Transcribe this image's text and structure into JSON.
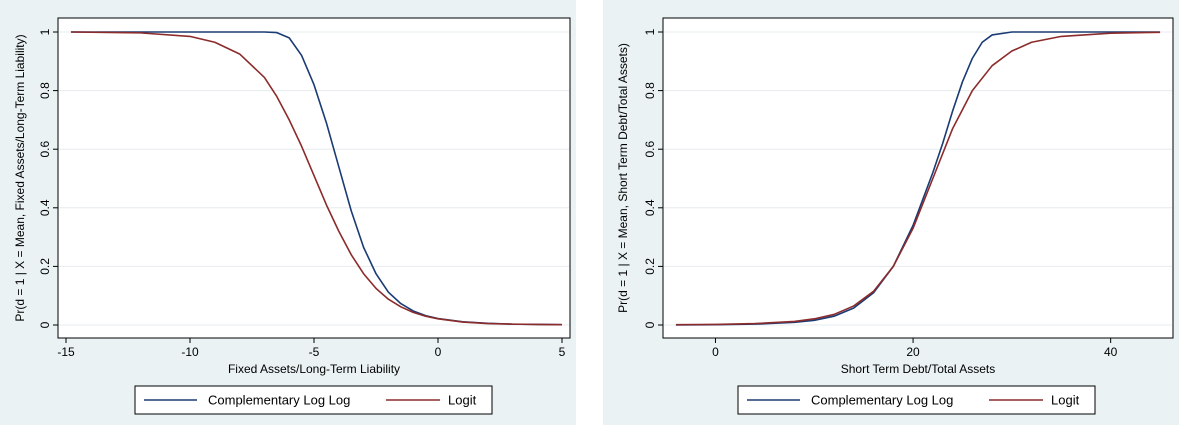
{
  "chart_data": [
    {
      "type": "line",
      "xlabel": "Fixed Assets/Long-Term Liability",
      "ylabel": "Pr(d = 1 | X = Mean, Fixed Assets/Long-Term Liability)",
      "xlim": [
        -15,
        5
      ],
      "ylim": [
        0,
        1
      ],
      "xticks": [
        -15,
        -10,
        -5,
        0,
        5
      ],
      "yticks": [
        0,
        0.2,
        0.4,
        0.6,
        0.8,
        1
      ],
      "ytick_labels": [
        "0",
        "0.2",
        "0.4",
        "0.6",
        "0.8",
        "1"
      ],
      "grid": "horizontal",
      "legend_position": "bottom",
      "series": [
        {
          "name": "Complementary Log Log",
          "color": "#1a3b73",
          "x": [
            -14.8,
            -12,
            -10,
            -8,
            -7,
            -6.5,
            -6,
            -5.5,
            -5,
            -4.5,
            -4,
            -3.5,
            -3,
            -2.5,
            -2,
            -1.5,
            -1,
            -0.5,
            0,
            1,
            2,
            3,
            4,
            5
          ],
          "y": [
            1,
            1,
            1,
            1,
            1,
            0.998,
            0.98,
            0.92,
            0.82,
            0.69,
            0.54,
            0.39,
            0.265,
            0.175,
            0.112,
            0.073,
            0.048,
            0.032,
            0.022,
            0.011,
            0.006,
            0.003,
            0.002,
            0.001
          ]
        },
        {
          "name": "Logit",
          "color": "#8c2b2b",
          "x": [
            -14.8,
            -12,
            -10,
            -9,
            -8,
            -7,
            -6.5,
            -6,
            -5.5,
            -5,
            -4.5,
            -4,
            -3.5,
            -3,
            -2.5,
            -2,
            -1.5,
            -1,
            -0.5,
            0,
            1,
            2,
            3,
            4,
            5
          ],
          "y": [
            1,
            0.997,
            0.985,
            0.965,
            0.925,
            0.845,
            0.78,
            0.7,
            0.61,
            0.51,
            0.41,
            0.32,
            0.24,
            0.175,
            0.125,
            0.088,
            0.062,
            0.043,
            0.03,
            0.021,
            0.01,
            0.005,
            0.003,
            0.002,
            0.001
          ]
        }
      ]
    },
    {
      "type": "line",
      "xlabel": "Short Term Debt/Total Assets",
      "ylabel": "Pr(d = 1 | X = Mean, Short Term Debt/Total Assets)",
      "xlim": [
        -4.5,
        45.5
      ],
      "ylim": [
        0,
        1
      ],
      "xticks": [
        0,
        20,
        40
      ],
      "yticks": [
        0,
        0.2,
        0.4,
        0.6,
        0.8,
        1
      ],
      "ytick_labels": [
        "0",
        "0.2",
        "0.4",
        "0.6",
        "0.8",
        "1"
      ],
      "grid": "horizontal",
      "legend_position": "bottom",
      "series": [
        {
          "name": "Complementary Log Log",
          "color": "#1a3b73",
          "x": [
            -4,
            0,
            4,
            8,
            10,
            12,
            14,
            16,
            18,
            20,
            22,
            23,
            24,
            25,
            26,
            27,
            28,
            30,
            35,
            40,
            45
          ],
          "y": [
            0,
            0.001,
            0.003,
            0.009,
            0.016,
            0.03,
            0.058,
            0.11,
            0.2,
            0.34,
            0.52,
            0.62,
            0.73,
            0.83,
            0.91,
            0.965,
            0.99,
            1,
            1,
            1,
            1
          ]
        },
        {
          "name": "Logit",
          "color": "#8c2b2b",
          "x": [
            -4,
            0,
            4,
            8,
            10,
            12,
            14,
            16,
            18,
            20,
            22,
            24,
            26,
            28,
            30,
            32,
            35,
            40,
            45
          ],
          "y": [
            0.001,
            0.002,
            0.005,
            0.012,
            0.021,
            0.036,
            0.065,
            0.115,
            0.2,
            0.33,
            0.5,
            0.67,
            0.8,
            0.885,
            0.935,
            0.965,
            0.985,
            0.996,
            0.999
          ]
        }
      ]
    }
  ]
}
